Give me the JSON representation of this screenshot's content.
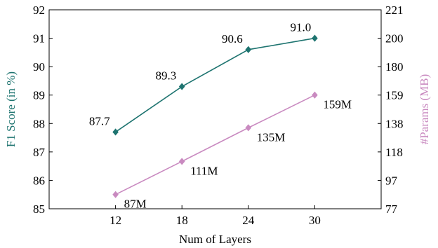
{
  "chart_data": {
    "type": "line",
    "xlabel": "Num of Layers",
    "ylabel_left": "F1 Score (in %)",
    "ylabel_right": "#Params (MB)",
    "categories": [
      "12",
      "18",
      "24",
      "30"
    ],
    "x": [
      12,
      18,
      24,
      30
    ],
    "xlim": [
      6,
      36
    ],
    "ylim_left": [
      85,
      92
    ],
    "left_ticks": [
      "85",
      "86",
      "87",
      "88",
      "89",
      "90",
      "91",
      "92"
    ],
    "right_ticks": [
      "77",
      "97",
      "118",
      "138",
      "159",
      "180",
      "200",
      "221"
    ],
    "grid": false,
    "series": [
      {
        "axis": "left",
        "color": "#1e7470",
        "marker": "diamond",
        "values": [
          87.7,
          89.3,
          90.6,
          91.0
        ],
        "labels": [
          "87.7",
          "89.3",
          "90.6",
          "91.0"
        ]
      },
      {
        "axis": "right",
        "color": "#c98ac0",
        "marker": "diamond",
        "values": [
          87,
          111,
          135,
          159
        ],
        "labels": [
          "87M",
          "111M",
          "135M",
          "159M"
        ]
      }
    ]
  }
}
